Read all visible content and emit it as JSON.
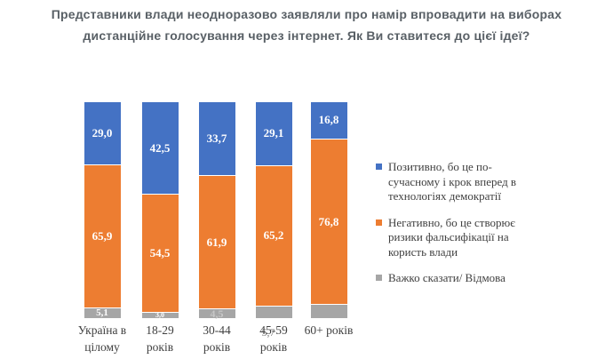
{
  "title": "Представники влади неодноразово заявляли про намір впровадити на виборах\nдистанційне голосування через інтернет.  Як Ви ставитеся до цієї ідеї?",
  "colors": {
    "positive_blue": "#4472C4",
    "negative_orange": "#ED7D31",
    "neutral_gray": "#A6A6A6",
    "title_text": "#596066",
    "axis_text": "#404040",
    "legend_text": "#3F3F3F",
    "background": "#FFFFFF"
  },
  "chart_data": {
    "type": "bar",
    "subtype": "stacked-100-percent-column",
    "title": "Представники влади неодноразово заявляли про намір впровадити на виборах дистанційне голосування через інтернет. Як Ви ставитеся до цієї ідеї?",
    "categories": [
      "Україна в\nцілому",
      "18-29\nроків",
      "30-44\nроків",
      "45-59\nроків",
      "60+ років"
    ],
    "series": [
      {
        "key": "positive",
        "name": "Позитивно, бо це по-\nсучасному і крок вперед в\nтехнологіях демократії",
        "color": "#4472C4",
        "values": [
          29.0,
          42.5,
          33.7,
          29.1,
          16.8
        ],
        "labels": [
          "29,0",
          "42,5",
          "33,7",
          "29,1",
          "16,8"
        ],
        "label_styles": [
          "inside",
          "inside",
          "inside",
          "inside",
          "inside"
        ]
      },
      {
        "key": "negative",
        "name": "Негативно, бо це створює\nризики фальсифікації на\nкористь влади",
        "color": "#ED7D31",
        "values": [
          65.9,
          54.5,
          61.9,
          65.2,
          76.8
        ],
        "labels": [
          "65,9",
          "54,5",
          "61,9",
          "65,2",
          "76,8"
        ],
        "label_styles": [
          "inside",
          "inside",
          "inside",
          "inside",
          "inside"
        ]
      },
      {
        "key": "neutral",
        "name": "Важко сказати/ Відмова",
        "color": "#A6A6A6",
        "values": [
          5.1,
          3.0,
          4.5,
          5.7,
          6.4
        ],
        "labels": [
          "5,1",
          "3,0",
          "4,5",
          "5,7",
          ""
        ],
        "label_styles": [
          "inside-small11",
          "inside-small",
          "inside-light",
          "below",
          "none"
        ]
      }
    ],
    "ylim": [
      0,
      100
    ],
    "grid": false,
    "legend_position": "right",
    "value_decimal_separator": ","
  }
}
